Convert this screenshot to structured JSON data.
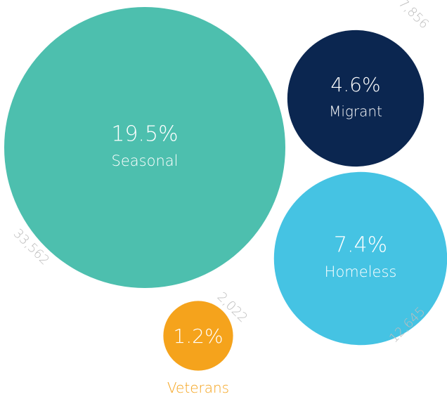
{
  "chart_data": {
    "type": "bubble",
    "categories": [
      "Seasonal",
      "Migrant",
      "Homeless",
      "Veterans"
    ],
    "values": [
      19.5,
      4.6,
      7.4,
      1.2
    ],
    "value_labels": [
      "19.5%",
      "4.6%",
      "7.4%",
      "1.2%"
    ],
    "counts": [
      33562,
      7856,
      12645,
      2022
    ],
    "count_labels": [
      "33,562",
      "7,856",
      "12,645",
      "2,022"
    ],
    "colors": [
      "#4dbfae",
      "#0b2650",
      "#45c3e3",
      "#f5a31c"
    ]
  }
}
